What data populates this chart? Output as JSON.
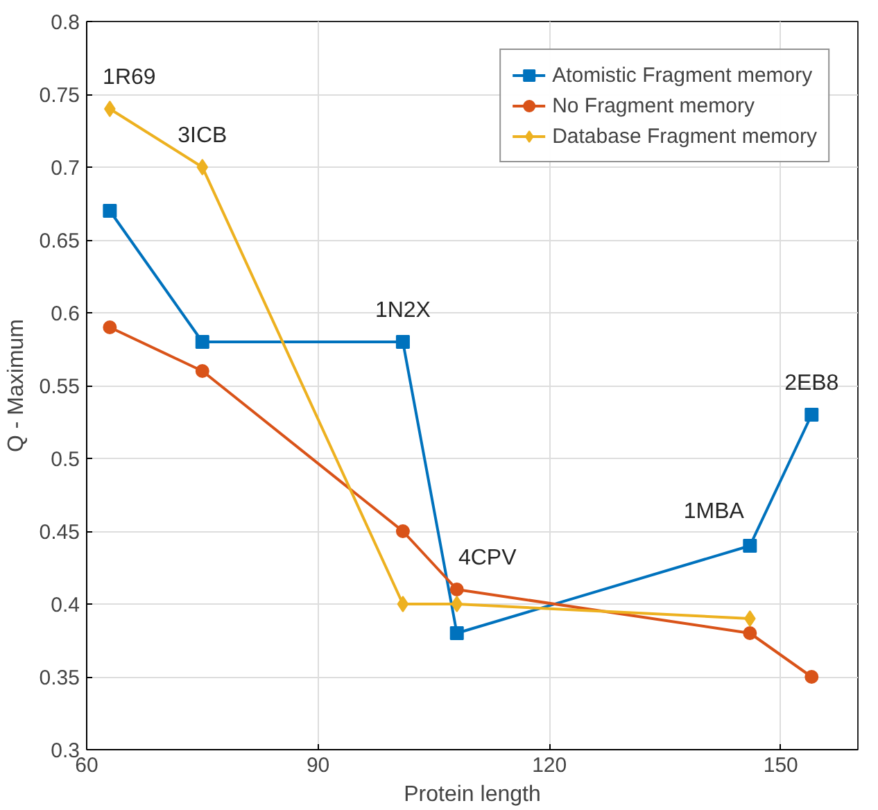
{
  "chart_data": {
    "type": "line",
    "xlabel": "Protein length",
    "ylabel": "Q - Maximum",
    "x": [
      63,
      75,
      101,
      108,
      146,
      154
    ],
    "series": [
      {
        "name": "Atomistic Fragment memory",
        "color": "#0072bd",
        "marker": "square",
        "values": [
          0.67,
          0.58,
          0.58,
          0.38,
          0.44,
          0.53
        ]
      },
      {
        "name": "No Fragment memory",
        "color": "#d95319",
        "marker": "circle",
        "values": [
          0.59,
          0.56,
          0.45,
          0.41,
          0.38,
          0.35
        ]
      },
      {
        "name": "Database Fragment memory",
        "color": "#edb120",
        "marker": "diamond",
        "values": [
          0.74,
          0.7,
          0.4,
          0.4,
          0.39,
          null
        ]
      }
    ],
    "xlim": [
      60,
      160
    ],
    "xticks": [
      60,
      90,
      120,
      150
    ],
    "ylim": [
      0.3,
      0.8
    ],
    "yticks": [
      0.3,
      0.35,
      0.4,
      0.45,
      0.5,
      0.55,
      0.6,
      0.65,
      0.7,
      0.75,
      0.8
    ],
    "grid": true,
    "legend": "top right",
    "annotations": [
      {
        "text": "1R69",
        "x": 63,
        "y": 0.74
      },
      {
        "text": "3ICB",
        "x": 75,
        "y": 0.7
      },
      {
        "text": "1N2X",
        "x": 101,
        "y": 0.58
      },
      {
        "text": "4CPV",
        "x": 108,
        "y": 0.41
      },
      {
        "text": "1MBA",
        "x": 146,
        "y": 0.44
      },
      {
        "text": "2EB8",
        "x": 154,
        "y": 0.53
      }
    ]
  }
}
